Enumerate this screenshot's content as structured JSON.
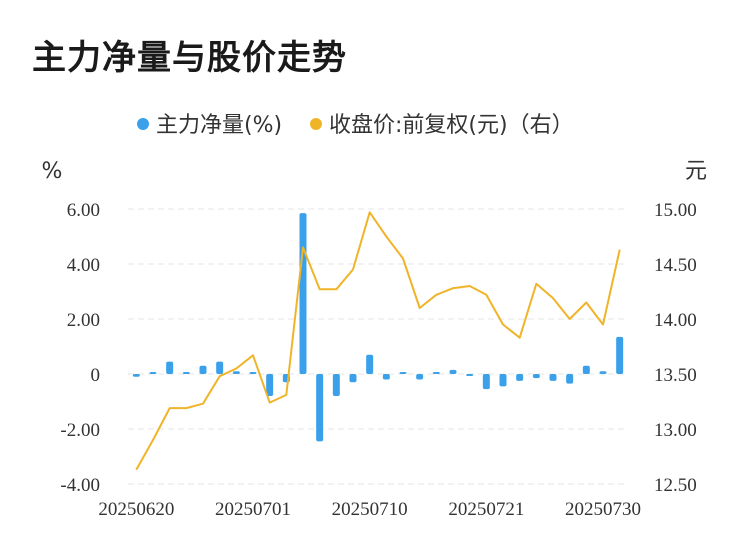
{
  "title": "主力净量与股价走势",
  "chart_data": {
    "type": "bar+line",
    "legend": [
      {
        "name": "主力净量(%)",
        "color": "#3aa0ea"
      },
      {
        "name": "收盘价:前复权(元)（右）",
        "color": "#f0b429"
      }
    ],
    "y_left": {
      "unit": "%",
      "min": -4,
      "max": 6,
      "ticks": [
        "6.00",
        "4.00",
        "2.00",
        "0",
        "-2.00",
        "-4.00"
      ]
    },
    "y_right": {
      "unit": "元",
      "min": 12.5,
      "max": 15,
      "ticks": [
        "15.00",
        "14.50",
        "14.00",
        "13.50",
        "13.00",
        "12.50"
      ]
    },
    "x_ticks": [
      "20250620",
      "20250701",
      "20250710",
      "20250721",
      "20250730"
    ],
    "x_tick_index": [
      0,
      7,
      14,
      21,
      28
    ],
    "bar_color": "#3aa0ea",
    "line_color": "#f0b429",
    "main_net_pct": [
      -0.1,
      0.0,
      0.45,
      0.0,
      0.3,
      0.45,
      0.1,
      0.0,
      -0.8,
      -0.3,
      5.85,
      -2.45,
      -0.8,
      -0.3,
      0.7,
      -0.2,
      0.05,
      -0.2,
      0.0,
      0.15,
      -0.05,
      -0.55,
      -0.45,
      -0.25,
      -0.15,
      -0.25,
      -0.35,
      0.3,
      0.1,
      1.35
    ],
    "close_price": [
      12.63,
      12.9,
      13.19,
      13.19,
      13.23,
      13.48,
      13.55,
      13.67,
      13.24,
      13.31,
      14.65,
      14.27,
      14.27,
      14.45,
      14.97,
      14.75,
      14.55,
      14.1,
      14.22,
      14.28,
      14.3,
      14.22,
      13.95,
      13.83,
      14.32,
      14.19,
      14.0,
      14.15,
      13.95,
      14.63
    ]
  }
}
